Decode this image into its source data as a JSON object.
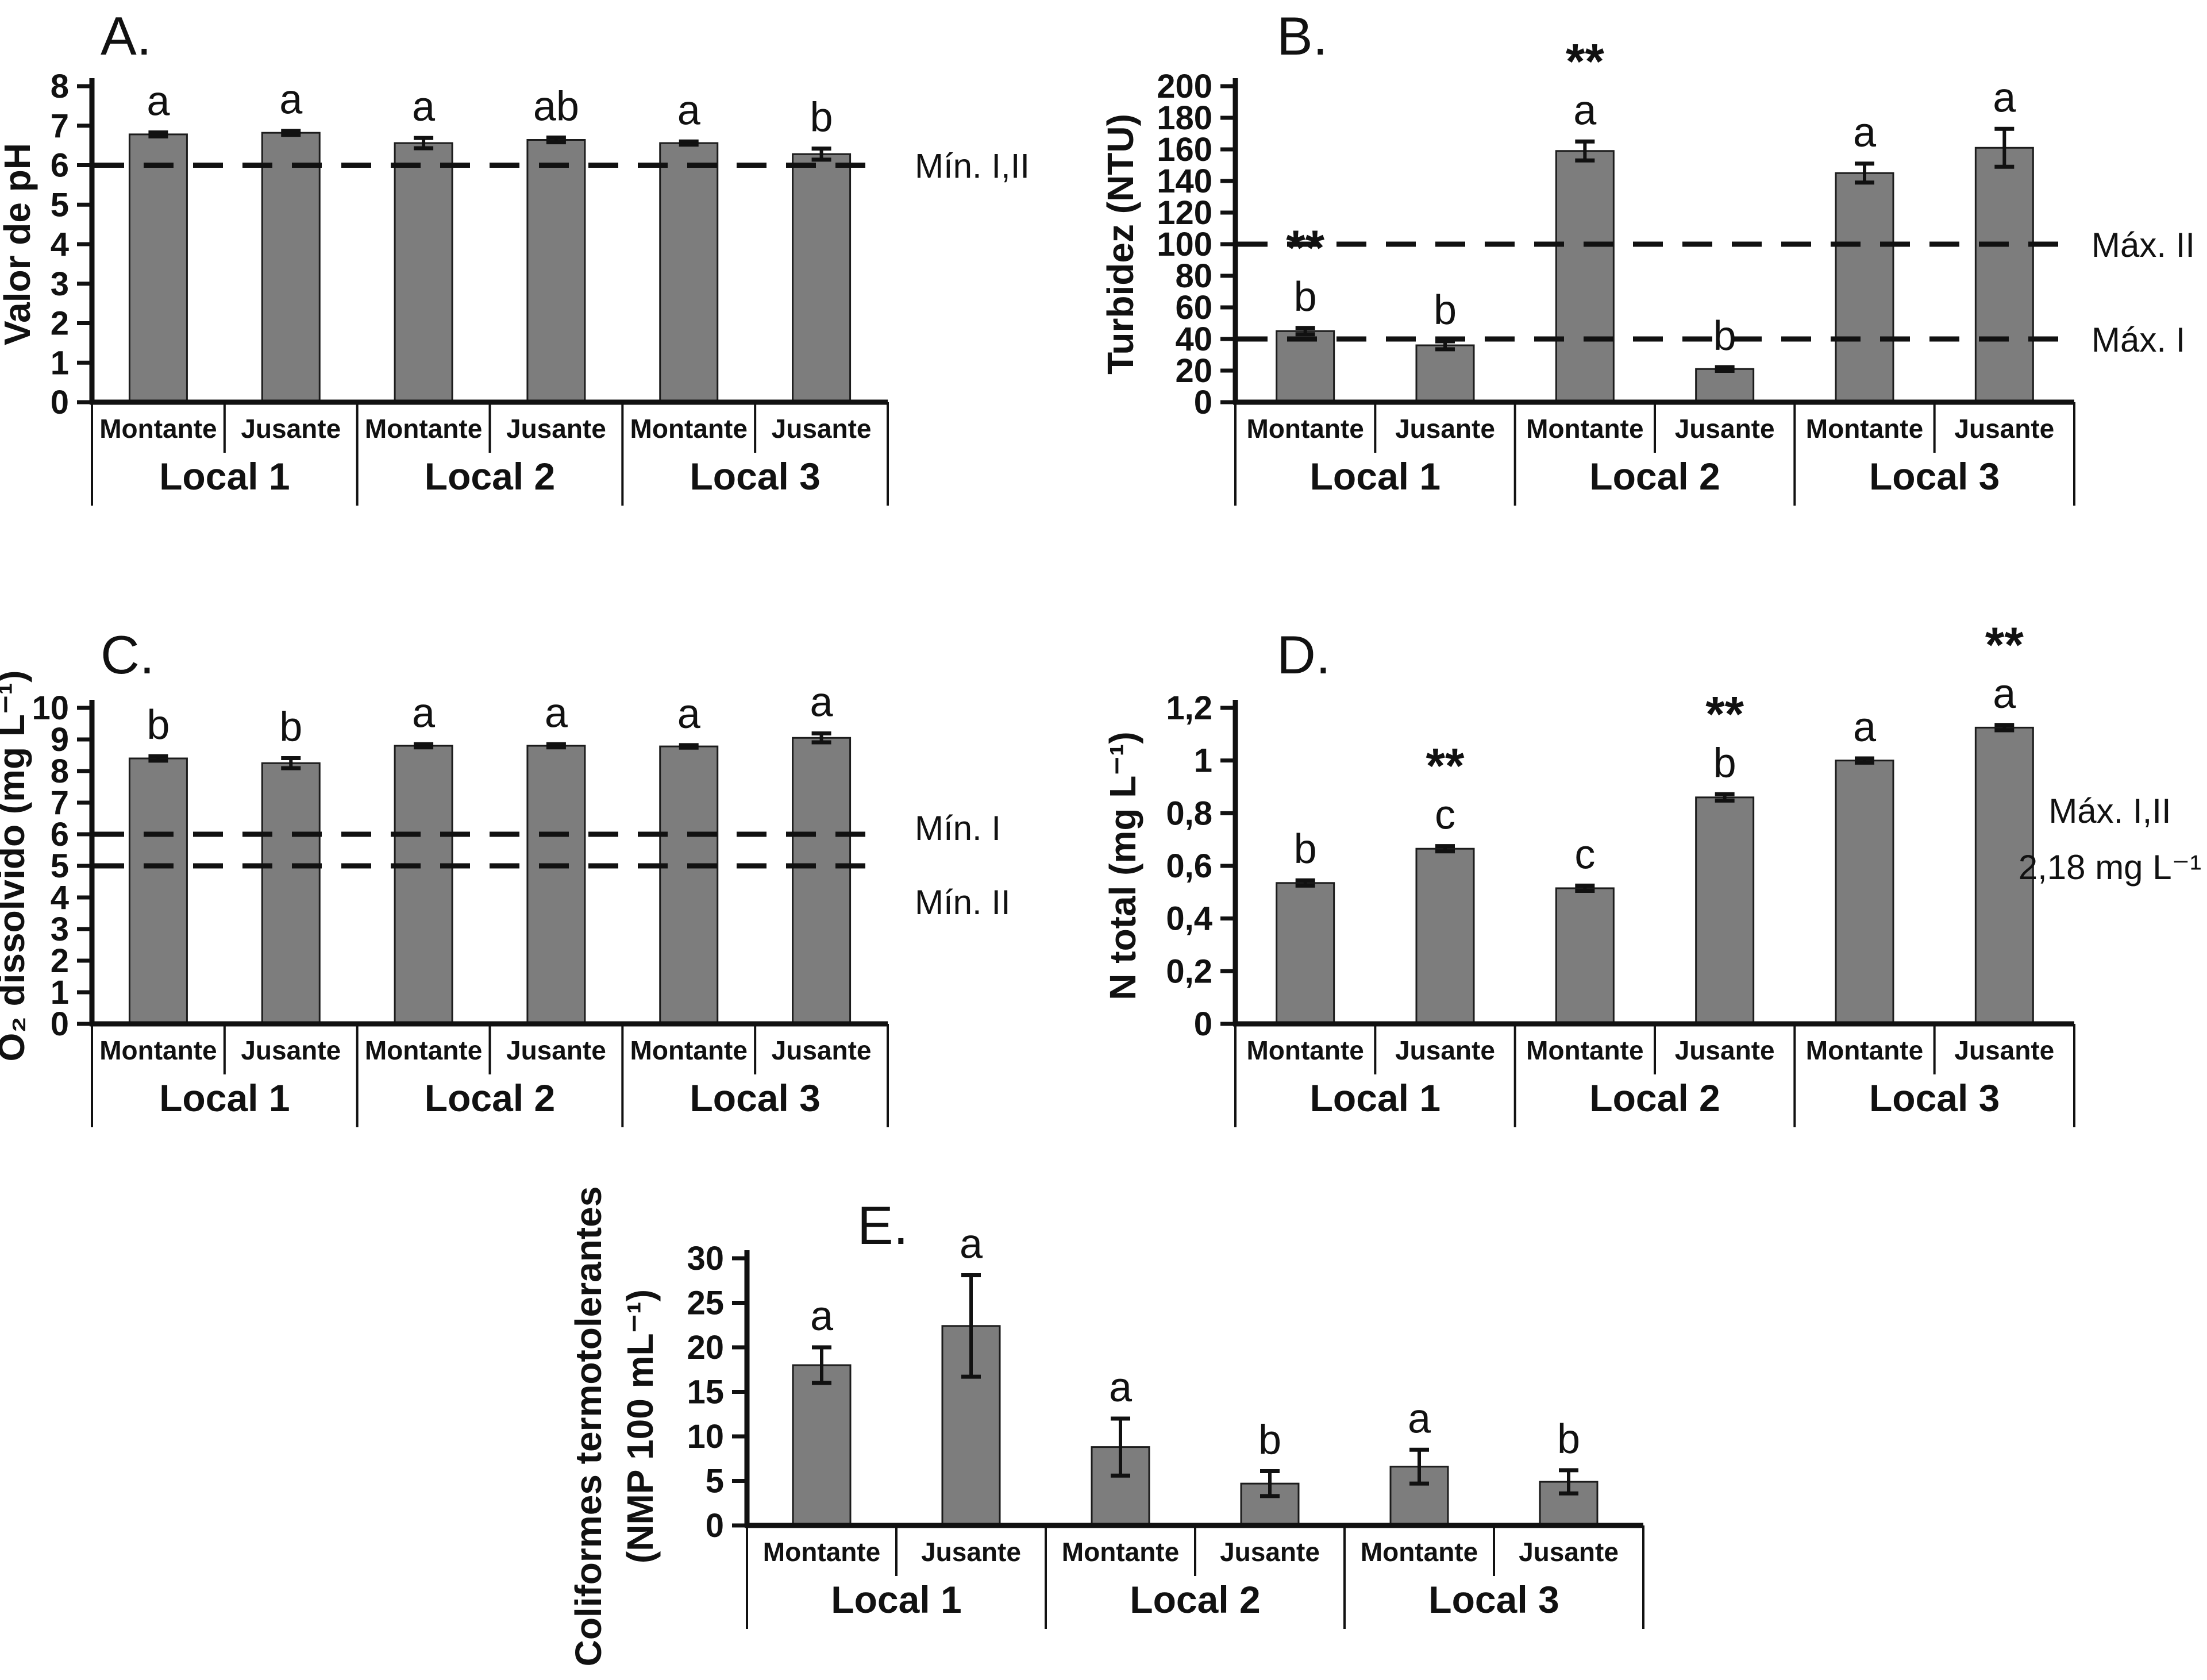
{
  "style": {
    "background": "#ffffff",
    "bar_fill": "#7d7d7d",
    "bar_stroke": "#1c1c1c",
    "line_color": "#111111",
    "text_color": "#111111"
  },
  "chart_data": [
    {
      "id": "A",
      "type": "bar",
      "panel_label": "A.",
      "ylabel": "Valor de pH",
      "ylim": [
        0,
        8
      ],
      "ytick_values": [
        0,
        1,
        2,
        3,
        4,
        5,
        6,
        7,
        8
      ],
      "ytick_labels": [
        "0",
        "1",
        "2",
        "3",
        "4",
        "5",
        "6",
        "7",
        "8"
      ],
      "group_labels": [
        "Local 1",
        "Local 2",
        "Local 3"
      ],
      "categories": [
        "Montante",
        "Jusante",
        "Montante",
        "Jusante",
        "Montante",
        "Jusante"
      ],
      "values": [
        6.78,
        6.82,
        6.56,
        6.64,
        6.56,
        6.28
      ],
      "errors": [
        0.05,
        0.05,
        0.13,
        0.06,
        0.04,
        0.14
      ],
      "sig_letters": [
        "a",
        "a",
        "a",
        "ab",
        "a",
        "b"
      ],
      "sig_stars": [
        "",
        "",
        "",
        "",
        "",
        ""
      ],
      "ref_lines": [
        {
          "y": 6,
          "label": "Mín. I,II"
        }
      ]
    },
    {
      "id": "B",
      "type": "bar",
      "panel_label": "B.",
      "ylabel": "Turbidez (NTU)",
      "ylim": [
        0,
        200
      ],
      "ytick_values": [
        0,
        20,
        40,
        60,
        80,
        100,
        120,
        140,
        160,
        180,
        200
      ],
      "ytick_labels": [
        "0",
        "20",
        "40",
        "60",
        "80",
        "100",
        "120",
        "140",
        "160",
        "180",
        "200"
      ],
      "group_labels": [
        "Local 1",
        "Local 2",
        "Local 3"
      ],
      "categories": [
        "Montante",
        "Jusante",
        "Montante",
        "Jusante",
        "Montante",
        "Jusante"
      ],
      "values": [
        45,
        36,
        159,
        21,
        145,
        161
      ],
      "errors": [
        2,
        2.5,
        6,
        1.2,
        6,
        12
      ],
      "sig_letters": [
        "b",
        "b",
        "a",
        "b",
        "a",
        "a"
      ],
      "sig_stars": [
        "**",
        "",
        "**",
        "",
        "",
        ""
      ],
      "ref_lines": [
        {
          "y": 100,
          "label": "Máx. II"
        },
        {
          "y": 40,
          "label": "Máx. I"
        }
      ]
    },
    {
      "id": "C",
      "type": "bar",
      "panel_label": "C.",
      "ylabel": "O₂ dissolvido (mg L⁻¹)",
      "ylim": [
        0,
        10
      ],
      "ytick_values": [
        0,
        1,
        2,
        3,
        4,
        5,
        6,
        7,
        8,
        9,
        10
      ],
      "ytick_labels": [
        "0",
        "1",
        "2",
        "3",
        "4",
        "5",
        "6",
        "7",
        "8",
        "9",
        "10"
      ],
      "group_labels": [
        "Local 1",
        "Local 2",
        "Local 3"
      ],
      "categories": [
        "Montante",
        "Jusante",
        "Montante",
        "Jusante",
        "Montante",
        "Jusante"
      ],
      "values": [
        8.4,
        8.25,
        8.8,
        8.8,
        8.78,
        9.05
      ],
      "errors": [
        0.07,
        0.16,
        0.05,
        0.05,
        0.04,
        0.14
      ],
      "sig_letters": [
        "b",
        "b",
        "a",
        "a",
        "a",
        "a"
      ],
      "sig_stars": [
        "",
        "",
        "",
        "",
        "",
        ""
      ],
      "ref_lines": [
        {
          "y": 6,
          "label": "Mín. I"
        },
        {
          "y": 5,
          "label": "Mín. II"
        }
      ]
    },
    {
      "id": "D",
      "type": "bar",
      "panel_label": "D.",
      "ylabel": "N total (mg L⁻¹)",
      "ylim": [
        0,
        1.2
      ],
      "ytick_values": [
        0,
        0.2,
        0.4,
        0.6,
        0.8,
        1,
        1.2
      ],
      "ytick_labels": [
        "0",
        "0,2",
        "0,4",
        "0,6",
        "0,8",
        "1",
        "1,2"
      ],
      "group_labels": [
        "Local 1",
        "Local 2",
        "Local 3"
      ],
      "categories": [
        "Montante",
        "Jusante",
        "Montante",
        "Jusante",
        "Montante",
        "Jusante"
      ],
      "values": [
        0.535,
        0.665,
        0.515,
        0.86,
        1.0,
        1.125
      ],
      "errors": [
        0.01,
        0.01,
        0.01,
        0.012,
        0.008,
        0.01
      ],
      "sig_letters": [
        "b",
        "c",
        "c",
        "b",
        "a",
        "a"
      ],
      "sig_stars": [
        "",
        "**",
        "",
        "**",
        "",
        "**"
      ],
      "ref_lines": [],
      "annotation": {
        "lines": [
          "Máx. I,II",
          "2,18 mg L⁻¹"
        ]
      }
    },
    {
      "id": "E",
      "type": "bar",
      "panel_label": "E.",
      "ylabel_lines": [
        "Coliformes termotolerantes",
        "(NMP 100 mL⁻¹)"
      ],
      "ylim": [
        0,
        30
      ],
      "ytick_values": [
        0,
        5,
        10,
        15,
        20,
        25,
        30
      ],
      "ytick_labels": [
        "0",
        "5",
        "10",
        "15",
        "20",
        "25",
        "30"
      ],
      "group_labels": [
        "Local 1",
        "Local 2",
        "Local 3"
      ],
      "categories": [
        "Montante",
        "Jusante",
        "Montante",
        "Jusante",
        "Montante",
        "Jusante"
      ],
      "values": [
        18,
        22.4,
        8.8,
        4.7,
        6.6,
        4.9
      ],
      "errors": [
        2,
        5.7,
        3.2,
        1.4,
        1.9,
        1.3
      ],
      "sig_letters": [
        "a",
        "a",
        "a",
        "b",
        "a",
        "b"
      ],
      "sig_stars": [
        "",
        "",
        "",
        "",
        "",
        ""
      ],
      "ref_lines": []
    }
  ]
}
